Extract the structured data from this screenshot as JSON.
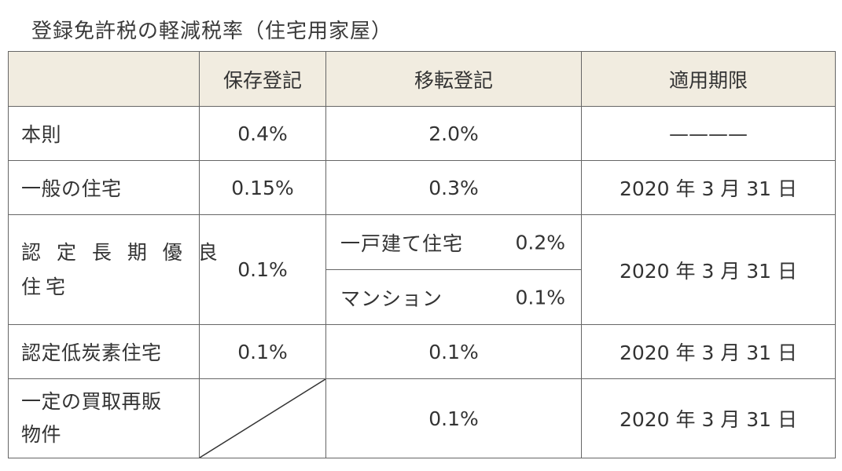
{
  "title": "登録免許税の軽減税率（住宅用家屋）",
  "header": {
    "blank": "",
    "col1": "保存登記",
    "col2": "移転登記",
    "col3": "適用期限"
  },
  "rows": [
    {
      "label": "本則",
      "hozon": "0.4%",
      "iten": "2.0%",
      "kigen": "————"
    },
    {
      "label": "一般の住宅",
      "hozon": "0.15%",
      "iten": "0.3%",
      "kigen": "2020 年 3 月 31 日"
    },
    {
      "label_line1": "認 定 長 期 優 良",
      "label_line2": "住宅",
      "hozon": "0.1%",
      "iten_sub": [
        {
          "name": "一戸建て住宅",
          "pct": "0.2%"
        },
        {
          "name": "マンション",
          "pct": "0.1%"
        }
      ],
      "kigen": "2020 年 3 月 31 日"
    },
    {
      "label": "認定低炭素住宅",
      "hozon": "0.1%",
      "iten": "0.1%",
      "kigen": "2020 年 3 月 31 日"
    },
    {
      "label_line1": "一定の買取再販",
      "label_line2": "物件",
      "hozon": "",
      "iten": "0.1%",
      "kigen": "2020 年 3 月 31 日"
    }
  ],
  "colors": {
    "header_bg": "#f1ece0",
    "border": "#666666",
    "text": "#333333"
  }
}
